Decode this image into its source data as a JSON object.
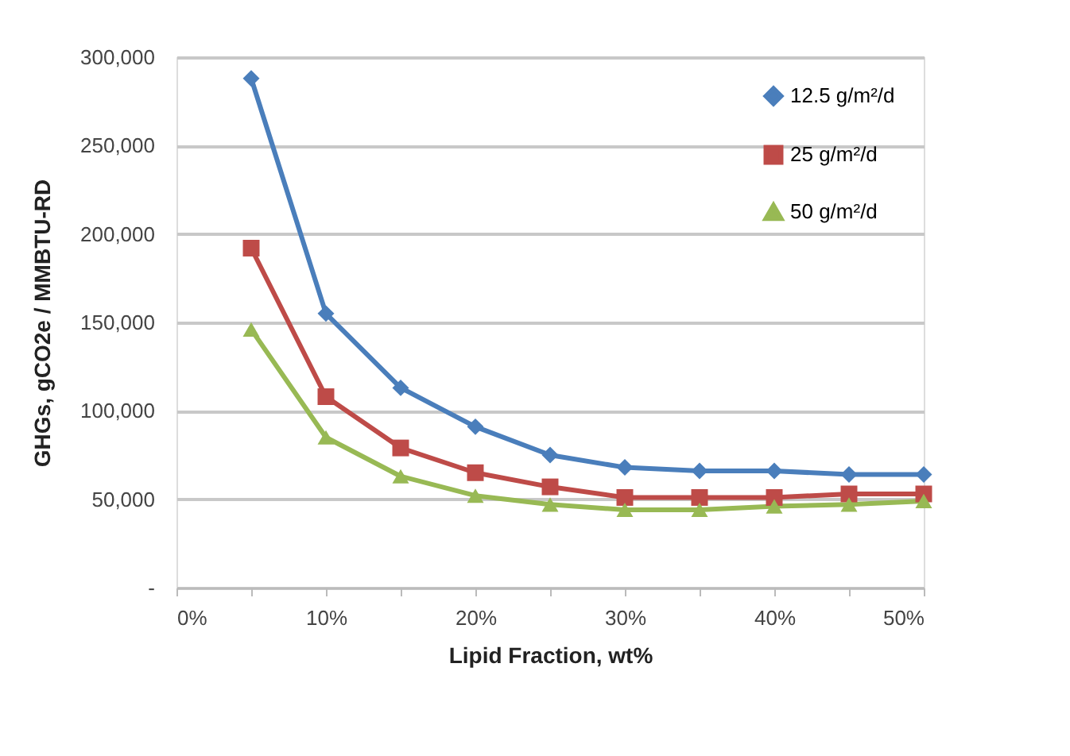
{
  "chart_data": {
    "type": "line",
    "xlabel": "Lipid Fraction, wt%",
    "ylabel": "GHGs, gCO2e / MMBTU-RD",
    "x": [
      5,
      10,
      15,
      20,
      25,
      30,
      35,
      40,
      45,
      50
    ],
    "series": [
      {
        "name": "12.5 g/m²/d",
        "color": "#4a7ebb",
        "marker": "diamond",
        "values": [
          288000,
          155000,
          113000,
          91000,
          75000,
          68000,
          66000,
          66000,
          64000,
          64000
        ]
      },
      {
        "name": "25 g/m²/d",
        "color": "#be4b48",
        "marker": "square",
        "values": [
          192000,
          108000,
          79000,
          65000,
          57000,
          51000,
          51000,
          51000,
          53000,
          53000
        ]
      },
      {
        "name": "50 g/m²/d",
        "color": "#98b954",
        "marker": "triangle",
        "values": [
          146000,
          85000,
          63000,
          52000,
          47000,
          44000,
          44000,
          46000,
          47000,
          49000
        ]
      }
    ],
    "xlim": [
      0,
      50
    ],
    "ylim": [
      0,
      300000
    ],
    "xticks": [
      {
        "value": 0,
        "label": "0%"
      },
      {
        "value": 5,
        "label": null
      },
      {
        "value": 10,
        "label": "10%"
      },
      {
        "value": 15,
        "label": null
      },
      {
        "value": 20,
        "label": "20%"
      },
      {
        "value": 25,
        "label": null
      },
      {
        "value": 30,
        "label": "30%"
      },
      {
        "value": 35,
        "label": null
      },
      {
        "value": 40,
        "label": "40%"
      },
      {
        "value": 45,
        "label": null
      },
      {
        "value": 50,
        "label": "50%"
      }
    ],
    "yticks": [
      {
        "value": 0,
        "label": "-"
      },
      {
        "value": 50000,
        "label": "50,000"
      },
      {
        "value": 100000,
        "label": "100,000"
      },
      {
        "value": 150000,
        "label": "150,000"
      },
      {
        "value": 200000,
        "label": "200,000"
      },
      {
        "value": 250000,
        "label": "250,000"
      },
      {
        "value": 300000,
        "label": "300,000"
      }
    ],
    "grid": "y",
    "legend": "top right",
    "line_style": "solid"
  }
}
